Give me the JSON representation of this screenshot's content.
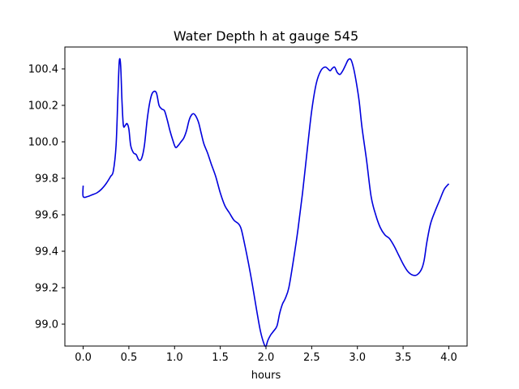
{
  "chart_data": {
    "type": "line",
    "title": "Water Depth h at gauge 545",
    "xlabel": "hours",
    "ylabel": "",
    "xlim": [
      -0.2,
      4.2
    ],
    "ylim": [
      98.88,
      100.52
    ],
    "xticks": [
      0.0,
      0.5,
      1.0,
      1.5,
      2.0,
      2.5,
      3.0,
      3.5,
      4.0
    ],
    "xtick_labels": [
      "0.0",
      "0.5",
      "1.0",
      "1.5",
      "2.0",
      "2.5",
      "3.0",
      "3.5",
      "4.0"
    ],
    "yticks": [
      99.0,
      99.2,
      99.4,
      99.6,
      99.8,
      100.0,
      100.2,
      100.4
    ],
    "ytick_labels": [
      "99.0",
      "99.2",
      "99.4",
      "99.6",
      "99.8",
      "100.0",
      "100.2",
      "100.4"
    ],
    "grid": false,
    "series": [
      {
        "color": "#0000dd",
        "x": [
          0.0,
          0.0,
          0.05,
          0.1,
          0.15,
          0.2,
          0.25,
          0.3,
          0.33,
          0.36,
          0.38,
          0.395,
          0.41,
          0.425,
          0.44,
          0.46,
          0.48,
          0.5,
          0.52,
          0.55,
          0.58,
          0.61,
          0.64,
          0.67,
          0.7,
          0.73,
          0.76,
          0.8,
          0.83,
          0.86,
          0.89,
          0.92,
          0.95,
          0.98,
          1.01,
          1.04,
          1.07,
          1.1,
          1.13,
          1.16,
          1.19,
          1.22,
          1.26,
          1.29,
          1.32,
          1.36,
          1.4,
          1.45,
          1.5,
          1.55,
          1.6,
          1.65,
          1.7,
          1.73,
          1.77,
          1.81,
          1.85,
          1.9,
          1.94,
          1.98,
          2.0,
          2.02,
          2.05,
          2.08,
          2.12,
          2.15,
          2.18,
          2.21,
          2.25,
          2.3,
          2.35,
          2.4,
          2.45,
          2.5,
          2.55,
          2.6,
          2.65,
          2.7,
          2.72,
          2.75,
          2.78,
          2.81,
          2.84,
          2.87,
          2.9,
          2.93,
          2.96,
          2.99,
          3.02,
          3.05,
          3.1,
          3.15,
          3.2,
          3.25,
          3.3,
          3.35,
          3.4,
          3.45,
          3.5,
          3.55,
          3.6,
          3.65,
          3.7,
          3.73,
          3.76,
          3.8,
          3.85,
          3.9,
          3.95,
          4.0
        ],
        "y": [
          99.76,
          99.7,
          99.7,
          99.71,
          99.72,
          99.74,
          99.77,
          99.81,
          99.84,
          99.98,
          100.25,
          100.44,
          100.42,
          100.22,
          100.09,
          100.09,
          100.1,
          100.07,
          99.98,
          99.94,
          99.93,
          99.9,
          99.91,
          99.98,
          100.12,
          100.22,
          100.27,
          100.27,
          100.2,
          100.18,
          100.17,
          100.12,
          100.06,
          100.01,
          99.97,
          99.98,
          100.0,
          100.02,
          100.06,
          100.12,
          100.15,
          100.15,
          100.11,
          100.05,
          99.99,
          99.94,
          99.88,
          99.81,
          99.72,
          99.65,
          99.61,
          99.57,
          99.55,
          99.52,
          99.43,
          99.33,
          99.22,
          99.07,
          98.96,
          98.89,
          98.88,
          98.91,
          98.94,
          98.96,
          98.99,
          99.06,
          99.11,
          99.14,
          99.2,
          99.35,
          99.52,
          99.72,
          99.95,
          100.17,
          100.32,
          100.39,
          100.41,
          100.39,
          100.4,
          100.41,
          100.38,
          100.37,
          100.39,
          100.42,
          100.45,
          100.45,
          100.4,
          100.32,
          100.22,
          100.08,
          99.9,
          99.7,
          99.6,
          99.53,
          99.49,
          99.47,
          99.43,
          99.38,
          99.33,
          99.29,
          99.27,
          99.27,
          99.3,
          99.35,
          99.45,
          99.55,
          99.62,
          99.68,
          99.74,
          99.77
        ]
      }
    ]
  }
}
